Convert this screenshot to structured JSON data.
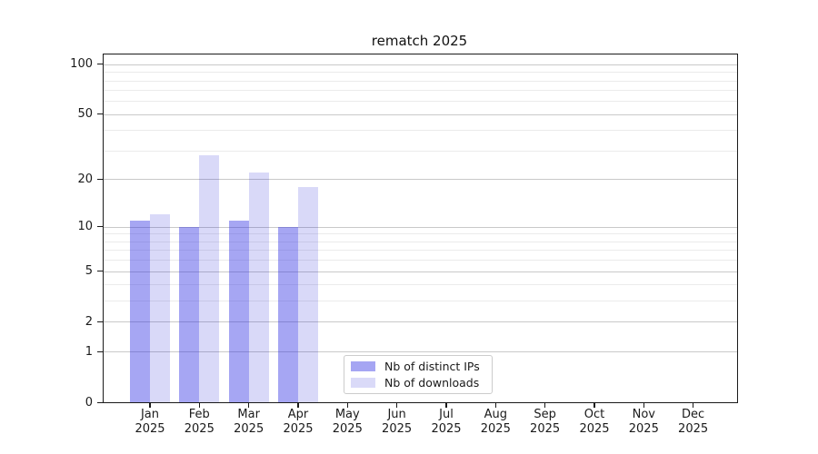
{
  "chart_data": {
    "type": "bar",
    "title": "rematch 2025",
    "categories": [
      "Jan",
      "Feb",
      "Mar",
      "Apr",
      "May",
      "Jun",
      "Jul",
      "Aug",
      "Sep",
      "Oct",
      "Nov",
      "Dec"
    ],
    "x_tick_line2": "2025",
    "series": [
      {
        "name": "Nb of distinct IPs",
        "color": "#a5a5f3",
        "color_rgba": "rgba(43,43,227,0.42)",
        "values": [
          11,
          10,
          11,
          10,
          0,
          0,
          0,
          0,
          0,
          0,
          0,
          0
        ]
      },
      {
        "name": "Nb of downloads",
        "color": "#dadaf8",
        "color_rgba": "rgba(0,0,210,0.15)",
        "values": [
          12,
          28,
          22,
          18,
          0,
          0,
          0,
          0,
          0,
          0,
          0,
          0
        ]
      }
    ],
    "y_axis": {
      "scale": "log1p",
      "ticks": [
        0,
        1,
        2,
        5,
        10,
        20,
        50,
        100
      ],
      "minor_gridlines": [
        3,
        4,
        6,
        7,
        8,
        9,
        30,
        40,
        60,
        70,
        80,
        90
      ],
      "ylim": [
        0,
        115
      ]
    },
    "legend": {
      "location": "lower center",
      "entries": [
        "Nb of distinct IPs",
        "Nb of downloads"
      ]
    },
    "grid": true,
    "grid_colors": {
      "major": "#c9c9c9",
      "minor": "#ebebeb"
    }
  }
}
